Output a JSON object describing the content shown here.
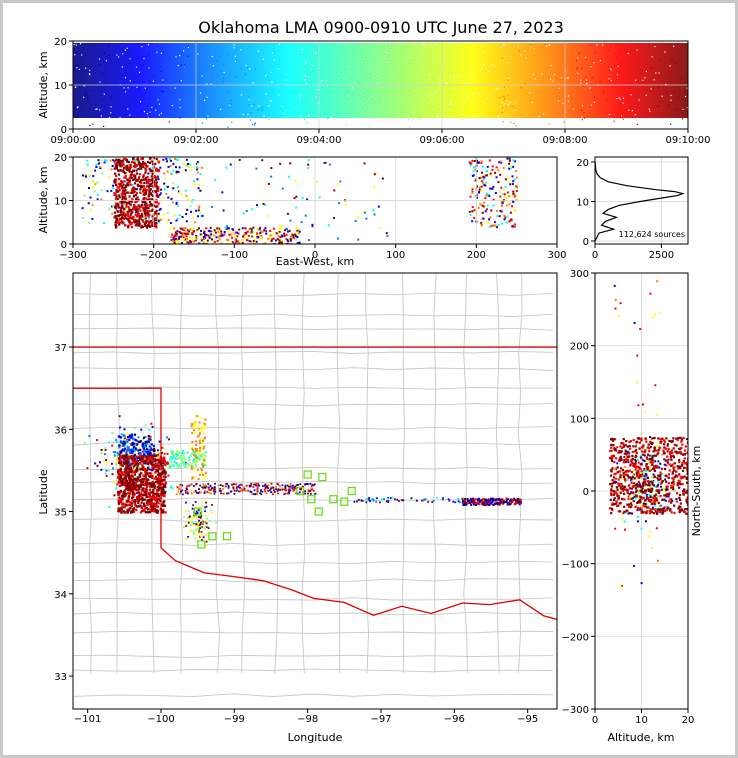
{
  "chart_data": [
    {
      "id": "time_height",
      "type": "scatter",
      "title": "Oklahoma LMA 0900-0910 UTC June 27, 2023",
      "ylabel": "Altitude, km",
      "xlim": [
        "09:00:00",
        "09:10:00"
      ],
      "ylim": [
        0,
        20
      ],
      "x_ticks": [
        "09:00:00",
        "09:02:00",
        "09:04:00",
        "09:06:00",
        "09:08:00",
        "09:10:00"
      ],
      "y_ticks": [
        "0",
        "10",
        "20"
      ],
      "colormap": "jet (time)",
      "colors": [
        "#00007f",
        "#0000ff",
        "#007fff",
        "#00ffff",
        "#7fff7f",
        "#ffff00",
        "#ff7f00",
        "#ff0000",
        "#7f0000"
      ],
      "grid": true
    },
    {
      "id": "ew_height",
      "type": "scatter",
      "xlabel": "East-West, km",
      "ylabel": "Altitude, km",
      "xlim": [
        -300,
        300
      ],
      "ylim": [
        0,
        20
      ],
      "x_ticks": [
        "−300",
        "−200",
        "−100",
        "0",
        "100",
        "200",
        "300"
      ],
      "y_ticks": [
        "0",
        "10",
        "20"
      ],
      "clusters": [
        {
          "x_range": [
            -250,
            -200
          ],
          "alt_range": [
            4,
            20
          ],
          "density": "very high"
        },
        {
          "x_range": [
            -280,
            -140
          ],
          "alt_range": [
            5,
            20
          ],
          "density": "high"
        },
        {
          "x_range": [
            -150,
            -20
          ],
          "alt_range": [
            0,
            4
          ],
          "density": "high"
        },
        {
          "x_range": [
            190,
            250
          ],
          "alt_range": [
            3,
            20
          ],
          "density": "medium"
        }
      ]
    },
    {
      "id": "altitude_histogram",
      "type": "line",
      "xlim": [
        0,
        3500
      ],
      "ylim": [
        0,
        20
      ],
      "x_ticks": [
        "0",
        "2500"
      ],
      "y_ticks": [
        "0",
        "10",
        "20"
      ],
      "annotation": "112,624 sources",
      "profile": [
        {
          "alt": 0,
          "count": 0
        },
        {
          "alt": 2,
          "count": 150
        },
        {
          "alt": 3,
          "count": 700
        },
        {
          "alt": 4,
          "count": 250
        },
        {
          "alt": 5,
          "count": 400
        },
        {
          "alt": 6,
          "count": 800
        },
        {
          "alt": 7,
          "count": 300
        },
        {
          "alt": 8,
          "count": 500
        },
        {
          "alt": 9,
          "count": 900
        },
        {
          "alt": 10,
          "count": 1700
        },
        {
          "alt": 11,
          "count": 2600
        },
        {
          "alt": 11.5,
          "count": 3100
        },
        {
          "alt": 12,
          "count": 3300
        },
        {
          "alt": 12.5,
          "count": 3000
        },
        {
          "alt": 13,
          "count": 2300
        },
        {
          "alt": 14,
          "count": 1200
        },
        {
          "alt": 15,
          "count": 500
        },
        {
          "alt": 16,
          "count": 200
        },
        {
          "alt": 17,
          "count": 80
        },
        {
          "alt": 18,
          "count": 30
        },
        {
          "alt": 20,
          "count": 5
        }
      ]
    },
    {
      "id": "plan_view",
      "type": "scatter",
      "xlabel": "Longitude",
      "ylabel": "Latitude",
      "xlim": [
        -101.2,
        -94.6
      ],
      "ylim": [
        32.6,
        37.9
      ],
      "x_ticks": [
        "−101",
        "−100",
        "−99",
        "−98",
        "−97",
        "−96",
        "−95"
      ],
      "y_ticks": [
        "33",
        "34",
        "35",
        "36",
        "37"
      ],
      "clusters": [
        {
          "lon_range": [
            -100.9,
            -99.9
          ],
          "lat_range": [
            34.9,
            36.0
          ],
          "density": "very high"
        },
        {
          "lon_range": [
            -101.2,
            -99.6
          ],
          "lat_range": [
            34.9,
            36.3
          ],
          "density": "high"
        },
        {
          "lon_range": [
            -99.7,
            -97.9
          ],
          "lat_range": [
            35.2,
            35.4
          ],
          "density": "medium"
        },
        {
          "lon_range": [
            -95.9,
            -95.1
          ],
          "lat_range": [
            35.08,
            35.18
          ],
          "density": "medium"
        }
      ],
      "stations": [
        [
          -99.5,
          35.0
        ],
        [
          -99.45,
          34.6
        ],
        [
          -99.3,
          34.7
        ],
        [
          -99.1,
          34.7
        ],
        [
          -98.0,
          35.45
        ],
        [
          -97.8,
          35.42
        ],
        [
          -98.1,
          35.25
        ],
        [
          -97.95,
          35.15
        ],
        [
          -97.65,
          35.15
        ],
        [
          -97.4,
          35.25
        ],
        [
          -97.5,
          35.12
        ],
        [
          -97.85,
          35.0
        ]
      ]
    },
    {
      "id": "ns_height",
      "type": "scatter",
      "xlabel": "Altitude, km",
      "ylabel": "North-South, km",
      "xlim": [
        0,
        20
      ],
      "ylim": [
        -300,
        300
      ],
      "x_ticks": [
        "0",
        "10",
        "20"
      ],
      "y_ticks": [
        "300",
        "200",
        "100",
        "0",
        "−100",
        "−200",
        "−300"
      ],
      "clusters": [
        {
          "alt_range": [
            3,
            20
          ],
          "ns_range": [
            -50,
            80
          ],
          "density": "very high"
        }
      ]
    }
  ]
}
